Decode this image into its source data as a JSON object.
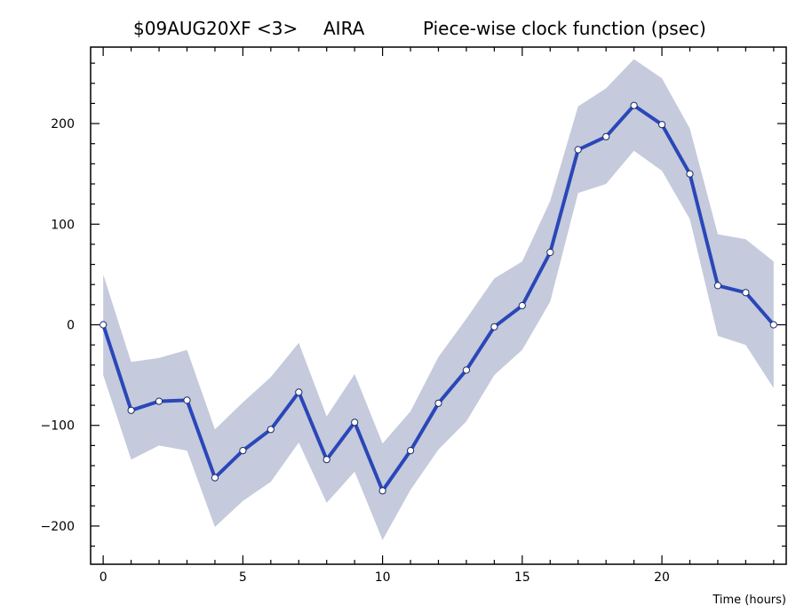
{
  "chart_data": {
    "type": "line",
    "title": "$09AUG20XF <3>   AIRA        Piece-wise clock function (psec)",
    "title_parts": [
      "$09AUG20XF <3>",
      "AIRA",
      "Piece-wise clock function (psec)"
    ],
    "xlabel": "Time (hours)",
    "ylabel": "",
    "xlim": [
      -0.45,
      24.45
    ],
    "ylim": [
      -238,
      276
    ],
    "xticks": [
      0,
      5,
      10,
      15,
      20
    ],
    "yticks": [
      -200,
      -100,
      0,
      100,
      200
    ],
    "xtick_labels": [
      "0",
      "5",
      "10",
      "15",
      "20"
    ],
    "ytick_labels": [
      "−200",
      "−100",
      "0",
      "100",
      "200"
    ],
    "x_minor_step": 1,
    "y_minor_step": 20,
    "grid": false,
    "line_color": "#2a47b8",
    "band_color": "#c5cadc",
    "marker_fill": "#ffffff",
    "series": [
      {
        "x": [
          0,
          1,
          2,
          3,
          4,
          5,
          6,
          7,
          8,
          9,
          10,
          11,
          12,
          13,
          14,
          15,
          16,
          17,
          18,
          19,
          20,
          21,
          22,
          23,
          24
        ],
        "y": [
          0,
          -85,
          -76,
          -75,
          -152,
          -125,
          -104,
          -67,
          -134,
          -97,
          -165,
          -125,
          -78,
          -45,
          -2,
          19,
          72,
          174,
          187,
          218,
          199,
          150,
          39,
          32,
          0
        ],
        "upper": [
          50,
          -37,
          -33,
          -25,
          -104,
          -77,
          -52,
          -18,
          -91,
          -49,
          -118,
          -86,
          -32,
          6,
          46,
          63,
          123,
          217,
          235,
          264,
          245,
          195,
          90,
          85,
          63
        ],
        "lower": [
          -50,
          -134,
          -120,
          -125,
          -201,
          -175,
          -156,
          -117,
          -177,
          -146,
          -214,
          -164,
          -124,
          -96,
          -50,
          -25,
          23,
          131,
          140,
          173,
          153,
          105,
          -11,
          -20,
          -63
        ]
      }
    ]
  }
}
